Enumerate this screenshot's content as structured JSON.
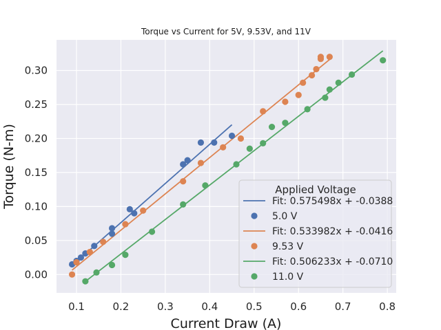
{
  "chart_data": {
    "type": "scatter",
    "title": "Torque vs Current for 5V, 9.53V, and 11V",
    "xlabel": "Current Draw (A)",
    "ylabel": "Torque (N-m)",
    "xlim": [
      0.055,
      0.82
    ],
    "ylim": [
      -0.027,
      0.345
    ],
    "x_ticks": [
      "0.1",
      "0.2",
      "0.3",
      "0.4",
      "0.5",
      "0.6",
      "0.7",
      "0.8"
    ],
    "y_ticks": [
      "0.00",
      "0.05",
      "0.10",
      "0.15",
      "0.20",
      "0.25",
      "0.30"
    ],
    "grid": true,
    "legend": {
      "title": "Applied Voltage",
      "placement": "lower right"
    },
    "series": [
      {
        "name": "5.0 V",
        "color": "#4c72b0",
        "fit_label": "Fit: 0.575498x + -0.0388",
        "fit": {
          "slope": 0.575498,
          "intercept": -0.0388,
          "x_range": [
            0.09,
            0.45
          ]
        },
        "points": [
          [
            0.09,
            0.015
          ],
          [
            0.1,
            0.02
          ],
          [
            0.11,
            0.025
          ],
          [
            0.12,
            0.031
          ],
          [
            0.14,
            0.042
          ],
          [
            0.18,
            0.06
          ],
          [
            0.18,
            0.068
          ],
          [
            0.22,
            0.096
          ],
          [
            0.23,
            0.09
          ],
          [
            0.34,
            0.162
          ],
          [
            0.35,
            0.168
          ],
          [
            0.38,
            0.194
          ],
          [
            0.41,
            0.194
          ],
          [
            0.45,
            0.204
          ]
        ]
      },
      {
        "name": "9.53 V",
        "color": "#dd8452",
        "fit_label": "Fit: 0.533982x + -0.0416",
        "fit": {
          "slope": 0.533982,
          "intercept": -0.0416,
          "x_range": [
            0.09,
            0.67
          ]
        },
        "points": [
          [
            0.09,
            0.0
          ],
          [
            0.1,
            0.018
          ],
          [
            0.13,
            0.033
          ],
          [
            0.16,
            0.048
          ],
          [
            0.21,
            0.074
          ],
          [
            0.25,
            0.094
          ],
          [
            0.34,
            0.137
          ],
          [
            0.38,
            0.164
          ],
          [
            0.43,
            0.187
          ],
          [
            0.47,
            0.2
          ],
          [
            0.52,
            0.24
          ],
          [
            0.57,
            0.254
          ],
          [
            0.6,
            0.264
          ],
          [
            0.61,
            0.282
          ],
          [
            0.63,
            0.293
          ],
          [
            0.64,
            0.302
          ],
          [
            0.65,
            0.317
          ],
          [
            0.65,
            0.32
          ],
          [
            0.67,
            0.32
          ]
        ]
      },
      {
        "name": "11.0 V",
        "color": "#55a868",
        "fit_label": "Fit: 0.506233x + -0.0710",
        "fit": {
          "slope": 0.506233,
          "intercept": -0.071,
          "x_range": [
            0.12,
            0.79
          ]
        },
        "points": [
          [
            0.12,
            -0.01
          ],
          [
            0.145,
            0.003
          ],
          [
            0.18,
            0.014
          ],
          [
            0.21,
            0.029
          ],
          [
            0.27,
            0.063
          ],
          [
            0.34,
            0.103
          ],
          [
            0.39,
            0.131
          ],
          [
            0.46,
            0.162
          ],
          [
            0.49,
            0.185
          ],
          [
            0.52,
            0.193
          ],
          [
            0.54,
            0.217
          ],
          [
            0.57,
            0.223
          ],
          [
            0.62,
            0.243
          ],
          [
            0.66,
            0.26
          ],
          [
            0.67,
            0.272
          ],
          [
            0.69,
            0.282
          ],
          [
            0.72,
            0.294
          ],
          [
            0.79,
            0.315
          ]
        ]
      }
    ]
  },
  "colors": {
    "plot_background": "#eaeaf2",
    "grid": "#ffffff",
    "figure_background": "#ffffff"
  }
}
